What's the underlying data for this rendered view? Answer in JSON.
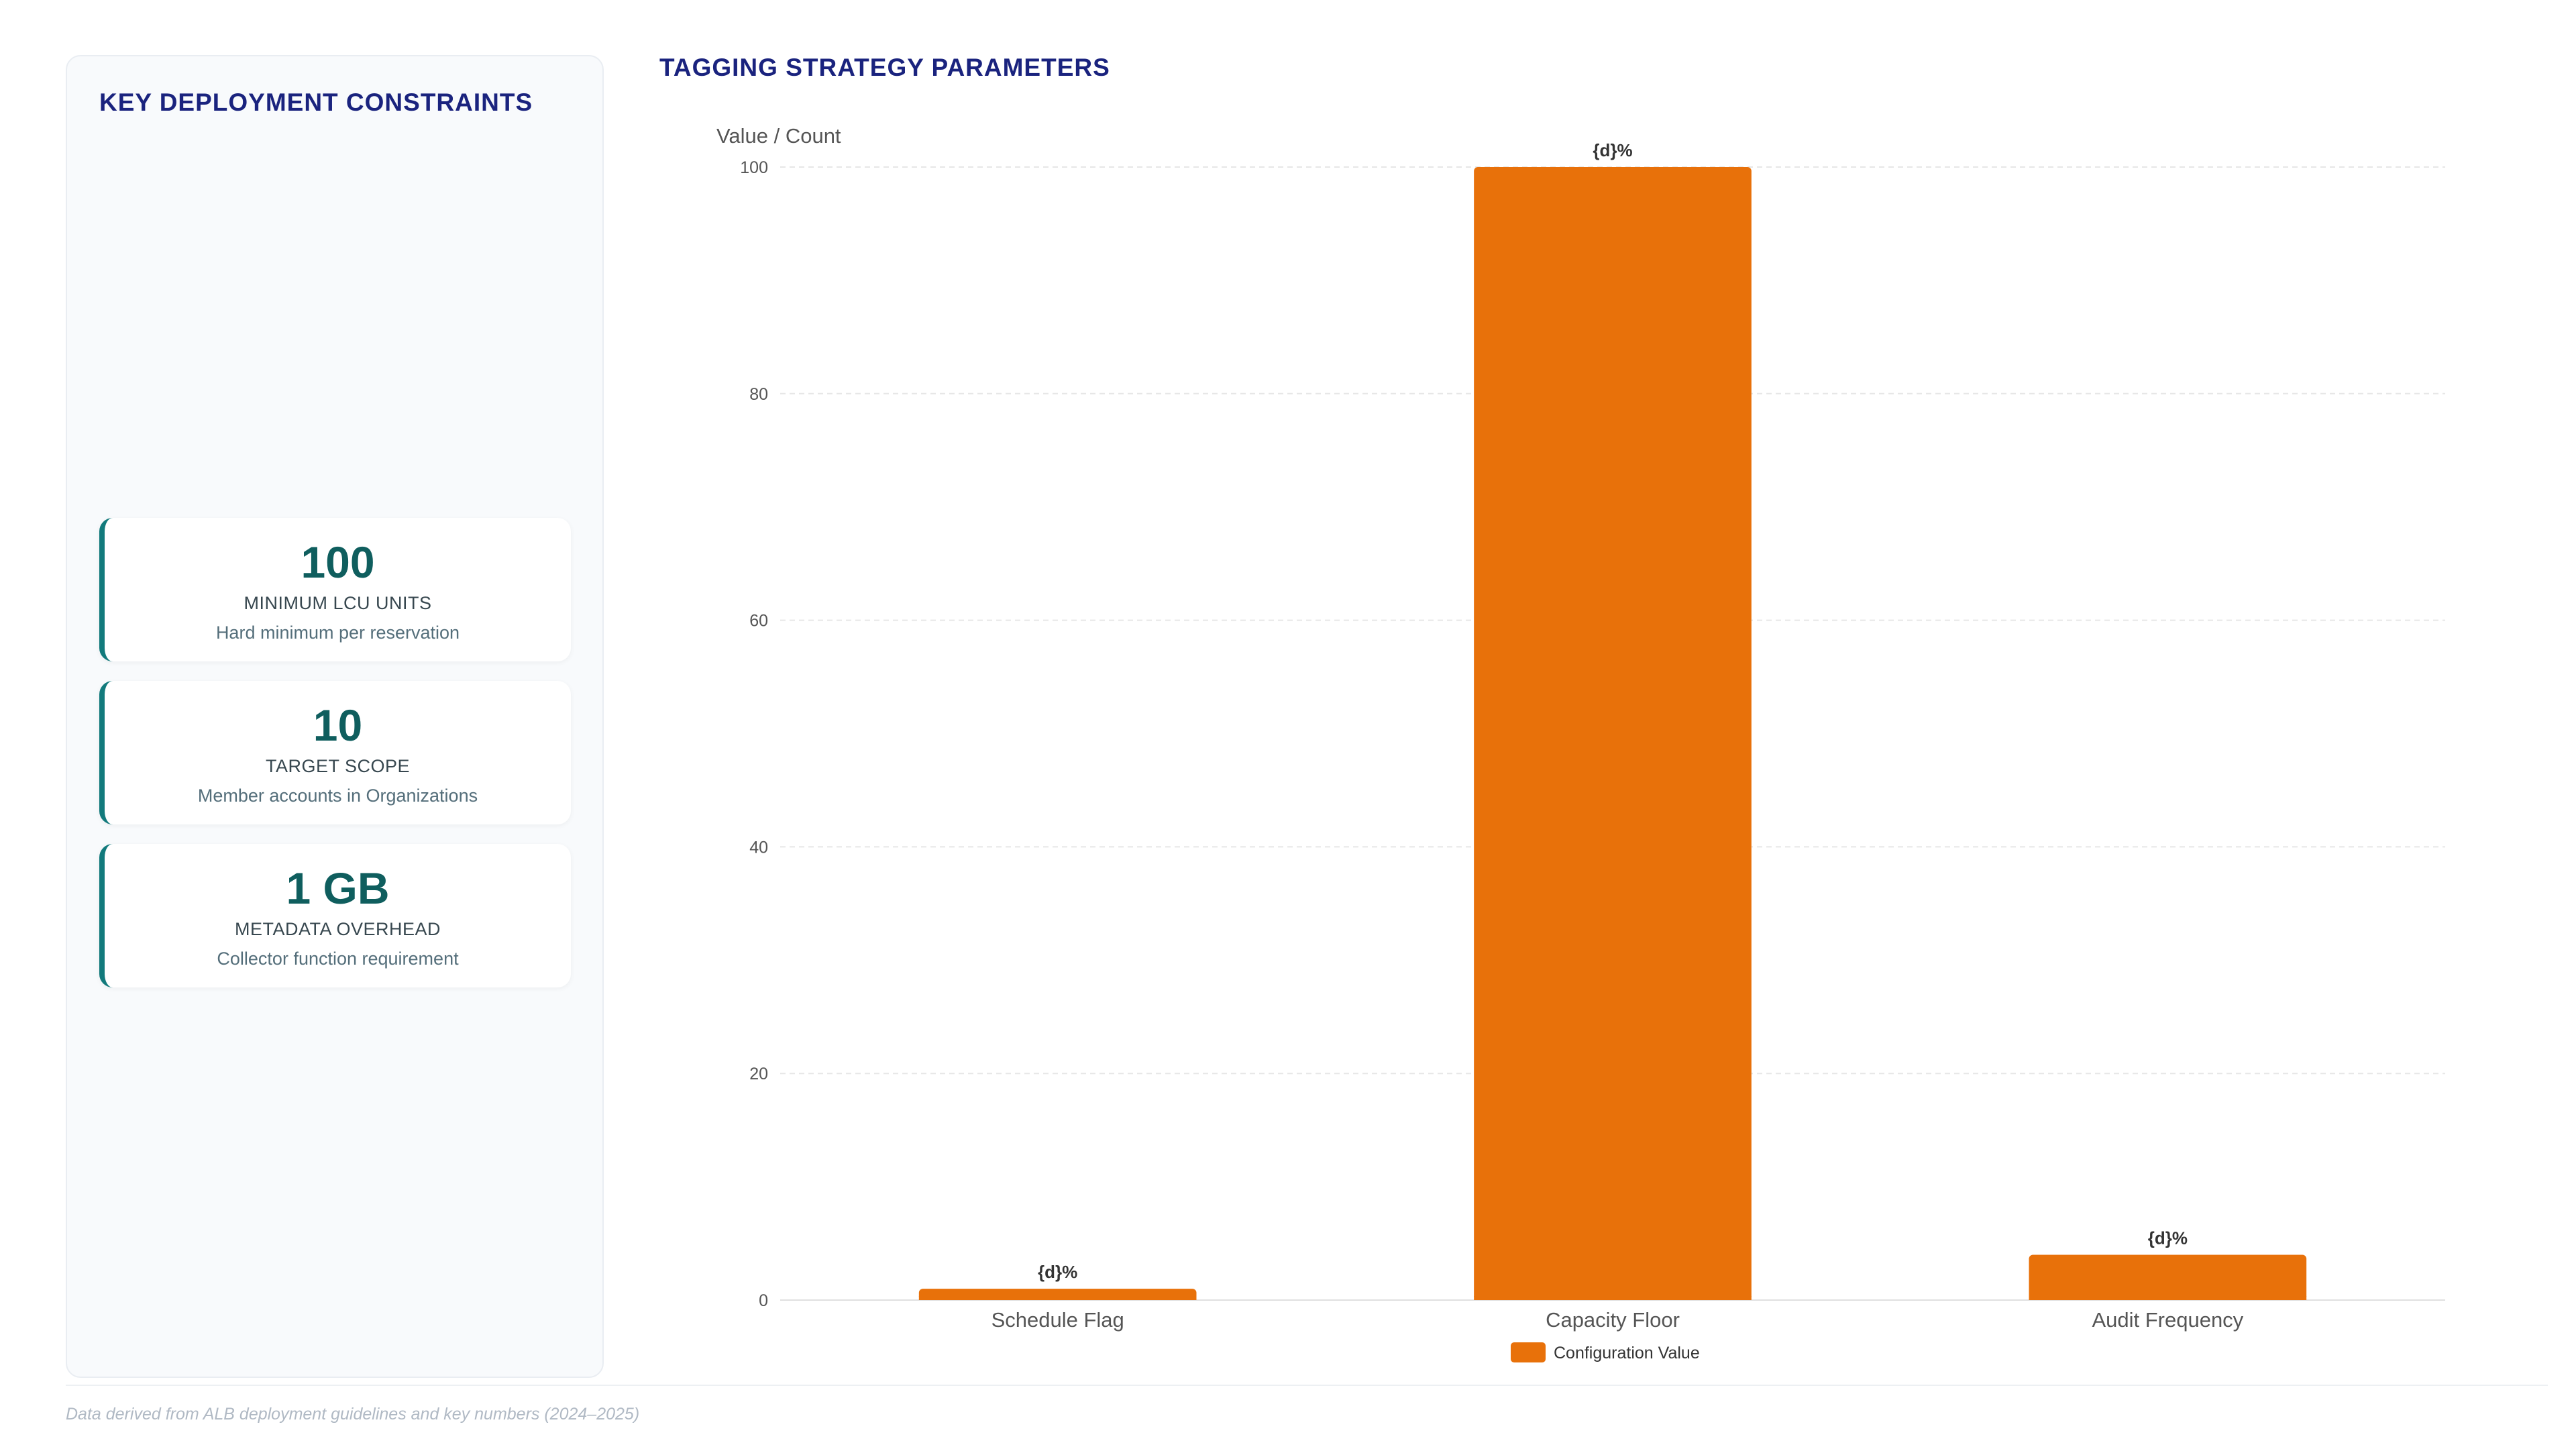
{
  "left_panel": {
    "title": "KEY DEPLOYMENT CONSTRAINTS",
    "cards": [
      {
        "value": "100",
        "label": "MINIMUM LCU UNITS",
        "sub": "Hard minimum per reservation"
      },
      {
        "value": "10",
        "label": "TARGET SCOPE",
        "sub": "Member accounts in Organizations"
      },
      {
        "value": "1 GB",
        "label": "METADATA OVERHEAD",
        "sub": "Collector function requirement"
      }
    ]
  },
  "chart_title": "TAGGING STRATEGY PARAMETERS",
  "footnote": "Data derived from ALB deployment guidelines and key numbers (2024–2025)",
  "colors": {
    "bar": "#e8710a",
    "accent": "#127a7c",
    "title": "#1a237e"
  },
  "chart_data": {
    "type": "bar",
    "categories": [
      "Schedule Flag",
      "Capacity Floor",
      "Audit Frequency"
    ],
    "series": [
      {
        "name": "Configuration Value",
        "values": [
          1,
          100,
          4
        ]
      }
    ],
    "data_labels": [
      "{d}%",
      "{d}%",
      "{d}%"
    ],
    "ylabel": "Value / Count",
    "xlabel": "",
    "ylim": [
      0,
      100
    ],
    "yticks": [
      0,
      20,
      40,
      60,
      80,
      100
    ],
    "grid": true,
    "legend": "bottom"
  }
}
